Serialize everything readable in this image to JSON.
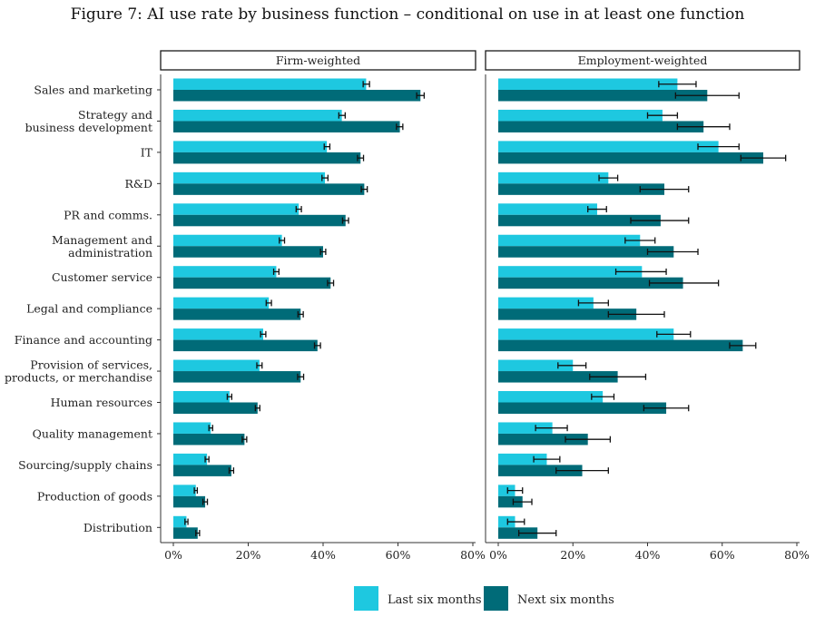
{
  "chart_data": {
    "type": "bar",
    "title": "Figure 7: AI use rate by business function – conditional on use in at least one function",
    "panels": [
      "Firm-weighted",
      "Employment-weighted"
    ],
    "categories": [
      [
        "Sales and marketing"
      ],
      [
        "Strategy and",
        "business development"
      ],
      [
        "IT"
      ],
      [
        "R&D"
      ],
      [
        "PR and comms."
      ],
      [
        "Management and",
        "administration"
      ],
      [
        "Customer service"
      ],
      [
        "Legal and compliance"
      ],
      [
        "Finance and accounting"
      ],
      [
        "Provision of services,",
        "products, or merchandise"
      ],
      [
        "Human resources"
      ],
      [
        "Quality management"
      ],
      [
        "Sourcing/supply chains"
      ],
      [
        "Production of goods"
      ],
      [
        "Distribution"
      ]
    ],
    "xlim": [
      0,
      80
    ],
    "xticks": [
      "0%",
      "20%",
      "40%",
      "60%",
      "80%"
    ],
    "series": [
      {
        "name": "Last six months",
        "color": "#1ec8e0",
        "firm_weighted": [
          51.5,
          45.0,
          41.0,
          40.5,
          33.5,
          29.0,
          27.5,
          25.5,
          24.0,
          23.0,
          15.0,
          10.0,
          9.0,
          6.0,
          3.5
        ],
        "firm_weighted_ci": [
          [
            50.7,
            52.4
          ],
          [
            44.2,
            45.9
          ],
          [
            40.3,
            41.8
          ],
          [
            39.7,
            41.3
          ],
          [
            32.8,
            34.2
          ],
          [
            28.3,
            29.7
          ],
          [
            26.8,
            28.2
          ],
          [
            24.8,
            26.2
          ],
          [
            23.3,
            24.7
          ],
          [
            22.3,
            23.7
          ],
          [
            14.4,
            15.6
          ],
          [
            9.5,
            10.5
          ],
          [
            8.5,
            9.5
          ],
          [
            5.6,
            6.4
          ],
          [
            3.1,
            3.9
          ]
        ],
        "employment_weighted": [
          48.0,
          44.0,
          59.0,
          29.5,
          26.5,
          38.0,
          38.5,
          25.5,
          47.0,
          20.0,
          28.0,
          14.5,
          13.0,
          4.5,
          4.5
        ],
        "employment_weighted_ci": [
          [
            43.0,
            53.0
          ],
          [
            40.0,
            48.0
          ],
          [
            53.5,
            64.5
          ],
          [
            27.0,
            32.0
          ],
          [
            24.0,
            29.0
          ],
          [
            34.0,
            42.0
          ],
          [
            31.5,
            45.0
          ],
          [
            21.5,
            29.5
          ],
          [
            42.5,
            51.5
          ],
          [
            16.0,
            23.5
          ],
          [
            25.0,
            31.0
          ],
          [
            10.0,
            18.5
          ],
          [
            9.5,
            16.5
          ],
          [
            2.5,
            6.5
          ],
          [
            2.5,
            7.0
          ]
        ]
      },
      {
        "name": "Next six months",
        "color": "#006b78",
        "firm_weighted": [
          66.0,
          60.5,
          50.0,
          51.0,
          46.0,
          40.0,
          42.0,
          34.0,
          38.5,
          34.0,
          22.5,
          19.0,
          15.5,
          8.5,
          6.5
        ],
        "firm_weighted_ci": [
          [
            65.0,
            67.0
          ],
          [
            59.6,
            61.3
          ],
          [
            49.2,
            50.8
          ],
          [
            50.2,
            51.8
          ],
          [
            45.2,
            46.8
          ],
          [
            39.3,
            40.7
          ],
          [
            41.2,
            42.8
          ],
          [
            33.3,
            34.7
          ],
          [
            37.7,
            39.3
          ],
          [
            33.2,
            34.8
          ],
          [
            21.9,
            23.1
          ],
          [
            18.4,
            19.6
          ],
          [
            14.9,
            16.1
          ],
          [
            7.9,
            9.1
          ],
          [
            6.0,
            7.0
          ]
        ],
        "employment_weighted": [
          56.0,
          55.0,
          71.0,
          44.5,
          43.5,
          47.0,
          49.5,
          37.0,
          65.5,
          32.0,
          45.0,
          24.0,
          22.5,
          6.5,
          10.5
        ],
        "employment_weighted_ci": [
          [
            47.5,
            64.5
          ],
          [
            48.0,
            62.0
          ],
          [
            65.0,
            77.0
          ],
          [
            38.0,
            51.0
          ],
          [
            35.5,
            51.0
          ],
          [
            40.0,
            53.5
          ],
          [
            40.5,
            59.0
          ],
          [
            29.5,
            44.5
          ],
          [
            62.0,
            69.0
          ],
          [
            24.5,
            39.5
          ],
          [
            39.0,
            51.0
          ],
          [
            18.0,
            30.0
          ],
          [
            15.5,
            29.5
          ],
          [
            4.0,
            9.0
          ],
          [
            5.5,
            15.5
          ]
        ]
      }
    ],
    "legend": [
      "Last six months",
      "Next six months"
    ],
    "legend_position": "bottom",
    "grid": false
  }
}
